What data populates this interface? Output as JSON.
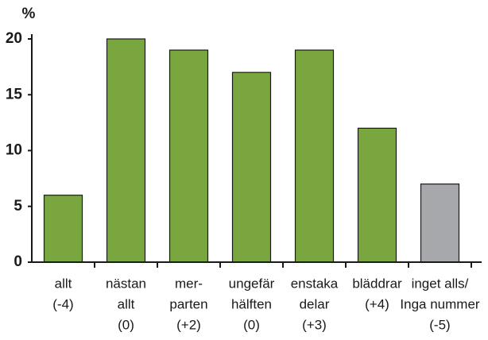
{
  "chart_data": {
    "type": "bar",
    "y_label": "%",
    "categories": [
      [
        "allt",
        "(-4)"
      ],
      [
        "nästan",
        "allt",
        "(0)"
      ],
      [
        "mer-",
        "parten",
        "(+2)"
      ],
      [
        "ungefär",
        "hälften",
        "(0)"
      ],
      [
        "enstaka",
        "delar",
        "(+3)"
      ],
      [
        "bläddrar",
        "(+4)"
      ],
      [
        "inget alls/",
        "Inga nummer",
        "(-5)"
      ]
    ],
    "values": [
      6,
      20,
      19,
      17,
      19,
      12,
      7
    ],
    "colors": [
      "#7aa640",
      "#7aa640",
      "#7aa640",
      "#7aa640",
      "#7aa640",
      "#7aa640",
      "#a7a8ab"
    ],
    "ylim": [
      0,
      20
    ],
    "yticks": [
      0,
      5,
      10,
      15,
      20
    ]
  }
}
